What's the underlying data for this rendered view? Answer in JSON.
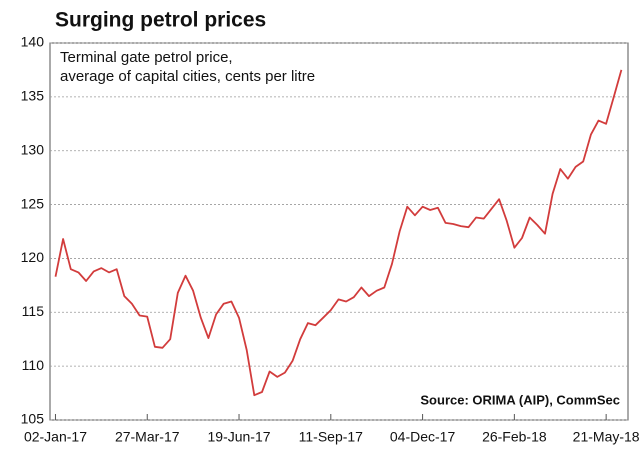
{
  "chart_data": {
    "type": "line",
    "title": "Surging petrol prices",
    "subtitle": [
      "Terminal gate petrol price,",
      "average of capital cities, cents per litre"
    ],
    "source": "Source: ORIMA (AIP), CommSec",
    "color": "#d23c3c",
    "x": [
      "2017-01-02",
      "2017-01-09",
      "2017-01-16",
      "2017-01-23",
      "2017-01-30",
      "2017-02-06",
      "2017-02-13",
      "2017-02-20",
      "2017-02-27",
      "2017-03-06",
      "2017-03-13",
      "2017-03-20",
      "2017-03-27",
      "2017-04-03",
      "2017-04-10",
      "2017-04-17",
      "2017-04-24",
      "2017-05-01",
      "2017-05-08",
      "2017-05-15",
      "2017-05-22",
      "2017-05-29",
      "2017-06-05",
      "2017-06-12",
      "2017-06-19",
      "2017-06-26",
      "2017-07-03",
      "2017-07-10",
      "2017-07-17",
      "2017-07-24",
      "2017-07-31",
      "2017-08-07",
      "2017-08-14",
      "2017-08-21",
      "2017-08-28",
      "2017-09-04",
      "2017-09-11",
      "2017-09-18",
      "2017-09-25",
      "2017-10-02",
      "2017-10-09",
      "2017-10-16",
      "2017-10-23",
      "2017-10-30",
      "2017-11-06",
      "2017-11-13",
      "2017-11-20",
      "2017-11-27",
      "2017-12-04",
      "2017-12-11",
      "2017-12-18",
      "2017-12-25",
      "2018-01-01",
      "2018-01-08",
      "2018-01-15",
      "2018-01-22",
      "2018-01-29",
      "2018-02-05",
      "2018-02-12",
      "2018-02-19",
      "2018-02-26",
      "2018-03-05",
      "2018-03-12",
      "2018-03-19",
      "2018-03-26",
      "2018-04-02",
      "2018-04-09",
      "2018-04-16",
      "2018-04-23",
      "2018-04-30",
      "2018-05-07",
      "2018-05-14",
      "2018-05-21",
      "2018-05-28",
      "2018-06-04"
    ],
    "values": [
      118.3,
      121.8,
      119,
      118.7,
      117.9,
      118.8,
      119.1,
      118.7,
      119,
      116.5,
      115.8,
      114.7,
      114.6,
      111.8,
      111.7,
      112.5,
      116.8,
      118.4,
      117,
      114.5,
      112.6,
      114.8,
      115.8,
      116,
      114.5,
      111.5,
      107.3,
      107.6,
      109.5,
      109,
      109.4,
      110.5,
      112.5,
      114,
      113.8,
      114.5,
      115.2,
      116.2,
      116,
      116.4,
      117.3,
      116.5,
      117,
      117.3,
      119.5,
      122.5,
      124.8,
      124,
      124.8,
      124.5,
      124.7,
      123.3,
      123.2,
      123,
      122.9,
      123.8,
      123.7,
      124.6,
      125.5,
      123.5,
      121,
      121.9,
      123.8,
      123.1,
      122.3,
      126,
      128.3,
      127.4,
      128.5,
      129,
      131.5,
      132.8,
      132.5,
      135,
      137.5
    ],
    "xlim": [
      "2016-12-28",
      "2018-06-10"
    ],
    "xticks": [
      {
        "value": "2017-01-02",
        "label": "02-Jan-17"
      },
      {
        "value": "2017-03-27",
        "label": "27-Mar-17"
      },
      {
        "value": "2017-06-19",
        "label": "19-Jun-17"
      },
      {
        "value": "2017-09-11",
        "label": "11-Sep-17"
      },
      {
        "value": "2017-12-04",
        "label": "04-Dec-17"
      },
      {
        "value": "2018-02-26",
        "label": "26-Feb-18"
      },
      {
        "value": "2018-05-21",
        "label": "21-May-18"
      }
    ],
    "ylim": [
      105,
      140
    ],
    "yticks": [
      105,
      110,
      115,
      120,
      125,
      130,
      135,
      140
    ],
    "grid": true
  }
}
